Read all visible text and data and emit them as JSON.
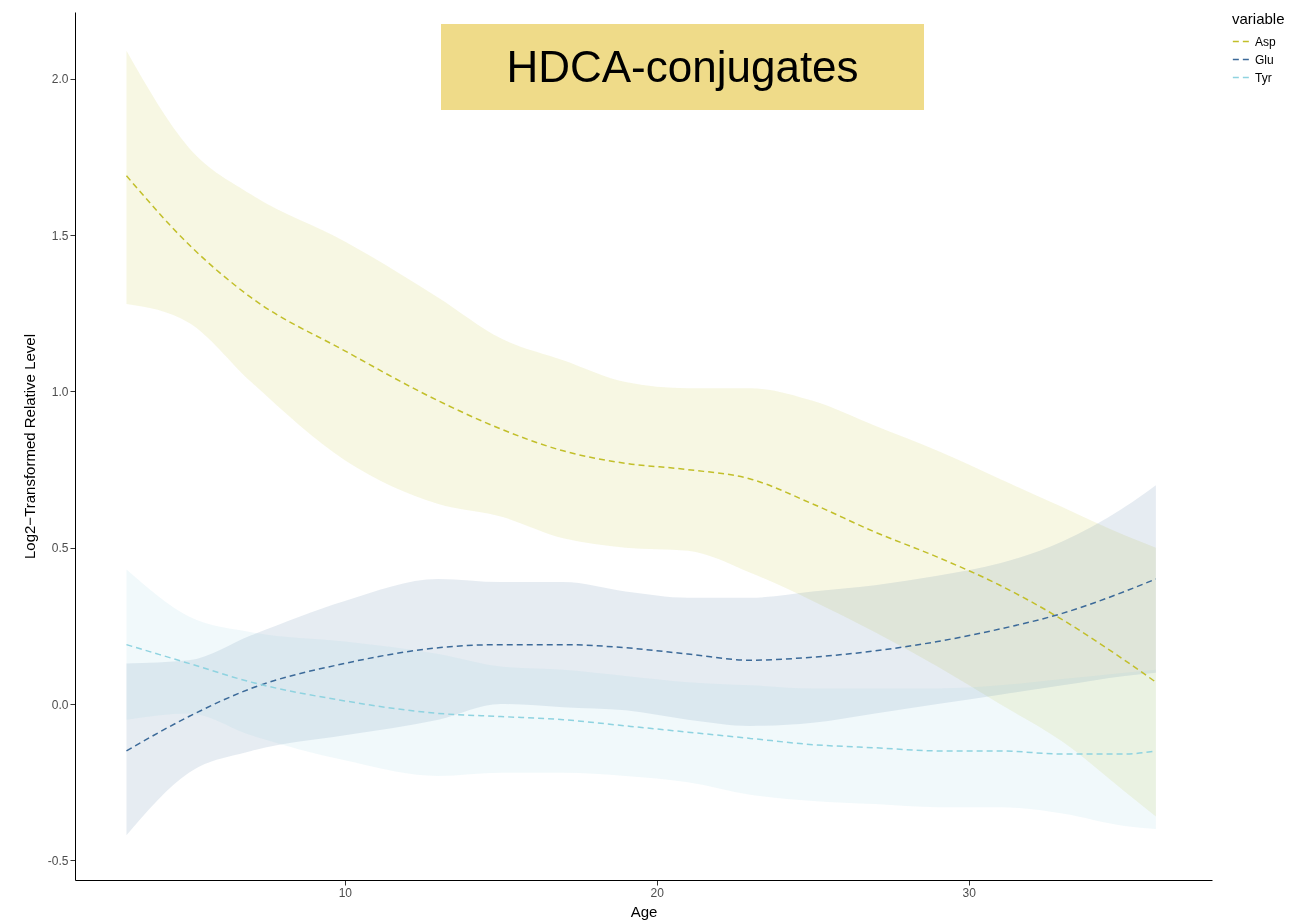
{
  "chart_data": {
    "type": "line",
    "title": "HDCA-conjugates",
    "xlabel": "Age",
    "ylabel": "Log2−Transformed Relative Level",
    "legend_title": "variable",
    "legend": "right",
    "line_style": "dashed",
    "x": [
      3,
      5,
      7,
      10,
      13,
      15,
      17,
      19,
      21,
      23,
      25,
      27,
      29,
      31,
      33,
      35,
      36
    ],
    "xlim": [
      1.35,
      37.8
    ],
    "ylim": [
      -0.563,
      2.214
    ],
    "xticks": [
      10,
      20,
      30
    ],
    "yticks": [
      {
        "value": -0.5,
        "label": "-0.5"
      },
      {
        "value": 0,
        "label": "0.0"
      },
      {
        "value": 0.5,
        "label": "0.5"
      },
      {
        "value": 1,
        "label": "1.0"
      },
      {
        "value": 1.5,
        "label": "1.5"
      },
      {
        "value": 2,
        "label": "2.0"
      }
    ],
    "series": [
      {
        "name": "Asp",
        "color": "#c2bf2a",
        "values": [
          1.69,
          1.47,
          1.3,
          1.13,
          0.97,
          0.88,
          0.81,
          0.77,
          0.75,
          0.72,
          0.64,
          0.55,
          0.47,
          0.38,
          0.27,
          0.14,
          0.07
        ],
        "upper": [
          2.09,
          1.78,
          1.63,
          1.48,
          1.3,
          1.17,
          1.1,
          1.03,
          1.01,
          1.01,
          0.97,
          0.89,
          0.81,
          0.72,
          0.63,
          0.54,
          0.5
        ],
        "lower": [
          1.28,
          1.22,
          1.03,
          0.78,
          0.64,
          0.6,
          0.53,
          0.5,
          0.49,
          0.42,
          0.33,
          0.23,
          0.12,
          0.0,
          -0.12,
          -0.28,
          -0.36
        ]
      },
      {
        "name": "Glu",
        "color": "#3c6a99",
        "values": [
          -0.15,
          -0.04,
          0.05,
          0.13,
          0.18,
          0.19,
          0.19,
          0.18,
          0.16,
          0.14,
          0.15,
          0.17,
          0.2,
          0.24,
          0.29,
          0.36,
          0.4
        ],
        "upper": [
          0.13,
          0.14,
          0.22,
          0.33,
          0.4,
          0.39,
          0.39,
          0.36,
          0.34,
          0.34,
          0.36,
          0.38,
          0.41,
          0.45,
          0.52,
          0.63,
          0.7
        ],
        "lower": [
          -0.42,
          -0.22,
          -0.15,
          -0.1,
          -0.05,
          0.0,
          -0.01,
          -0.02,
          -0.05,
          -0.07,
          -0.06,
          -0.03,
          0.0,
          0.03,
          0.06,
          0.09,
          0.1
        ]
      },
      {
        "name": "Tyr",
        "color": "#8fd3e0",
        "values": [
          0.19,
          0.13,
          0.07,
          0.01,
          -0.03,
          -0.04,
          -0.05,
          -0.07,
          -0.09,
          -0.11,
          -0.13,
          -0.14,
          -0.15,
          -0.15,
          -0.16,
          -0.16,
          -0.15
        ],
        "upper": [
          0.43,
          0.28,
          0.23,
          0.2,
          0.16,
          0.12,
          0.11,
          0.09,
          0.07,
          0.06,
          0.05,
          0.05,
          0.05,
          0.06,
          0.08,
          0.1,
          0.11
        ],
        "lower": [
          -0.05,
          -0.03,
          -0.1,
          -0.18,
          -0.23,
          -0.22,
          -0.22,
          -0.23,
          -0.25,
          -0.29,
          -0.31,
          -0.32,
          -0.33,
          -0.33,
          -0.35,
          -0.39,
          -0.4
        ]
      }
    ]
  }
}
